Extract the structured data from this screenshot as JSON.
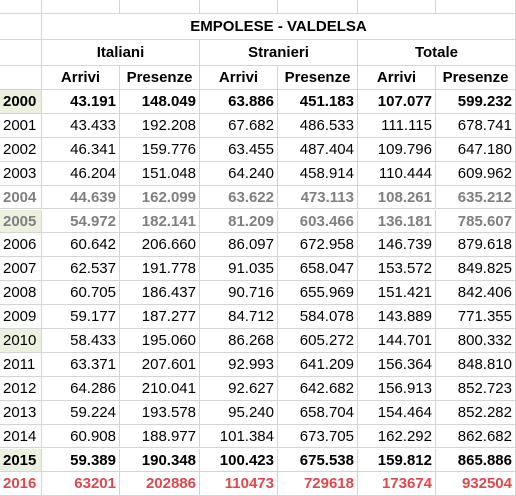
{
  "header": {
    "title": "EMPOLESE - VALDELSA",
    "groups": [
      "Italiani",
      "Stranieri",
      "Totale"
    ],
    "subheaders": [
      "Arrivi",
      "Presenze",
      "Arrivi",
      "Presenze",
      "Arrivi",
      "Presenze"
    ]
  },
  "table": {
    "rows": [
      [
        "2000",
        "43.191",
        "148.049",
        "63.886",
        "451.183",
        "107.077",
        "599.232"
      ],
      [
        "2001",
        "43.433",
        "192.208",
        "67.682",
        "486.533",
        "111.115",
        "678.741"
      ],
      [
        "2002",
        "46.341",
        "159.776",
        "63.455",
        "487.404",
        "109.796",
        "647.180"
      ],
      [
        "2003",
        "46.204",
        "151.048",
        "64.240",
        "458.914",
        "110.444",
        "609.962"
      ],
      [
        "2004",
        "44.639",
        "162.099",
        "63.622",
        "473.113",
        "108.261",
        "635.212"
      ],
      [
        "2005",
        "54.972",
        "182.141",
        "81.209",
        "603.466",
        "136.181",
        "785.607"
      ],
      [
        "2006",
        "60.642",
        "206.660",
        "86.097",
        "672.958",
        "146.739",
        "879.618"
      ],
      [
        "2007",
        "62.537",
        "191.778",
        "91.035",
        "658.047",
        "153.572",
        "849.825"
      ],
      [
        "2008",
        "60.705",
        "186.437",
        "90.716",
        "655.969",
        "151.421",
        "842.406"
      ],
      [
        "2009",
        "59.177",
        "187.277",
        "84.712",
        "584.078",
        "143.889",
        "771.355"
      ],
      [
        "2010",
        "58.433",
        "195.060",
        "86.268",
        "605.272",
        "144.701",
        "800.332"
      ],
      [
        "2011",
        "63.371",
        "207.601",
        "92.993",
        "641.209",
        "156.364",
        "848.810"
      ],
      [
        "2012",
        "64.286",
        "210.041",
        "92.627",
        "642.682",
        "156.913",
        "852.723"
      ],
      [
        "2013",
        "59.224",
        "193.578",
        "95.240",
        "658.704",
        "154.464",
        "852.282"
      ],
      [
        "2014",
        "60.908",
        "188.977",
        "101.384",
        "673.705",
        "162.292",
        "862.682"
      ],
      [
        "2015",
        "59.389",
        "190.348",
        "100.423",
        "675.538",
        "159.812",
        "865.886"
      ],
      [
        "2016",
        "63201",
        "202886",
        "110473",
        "729618",
        "173674",
        "932504"
      ]
    ]
  }
}
